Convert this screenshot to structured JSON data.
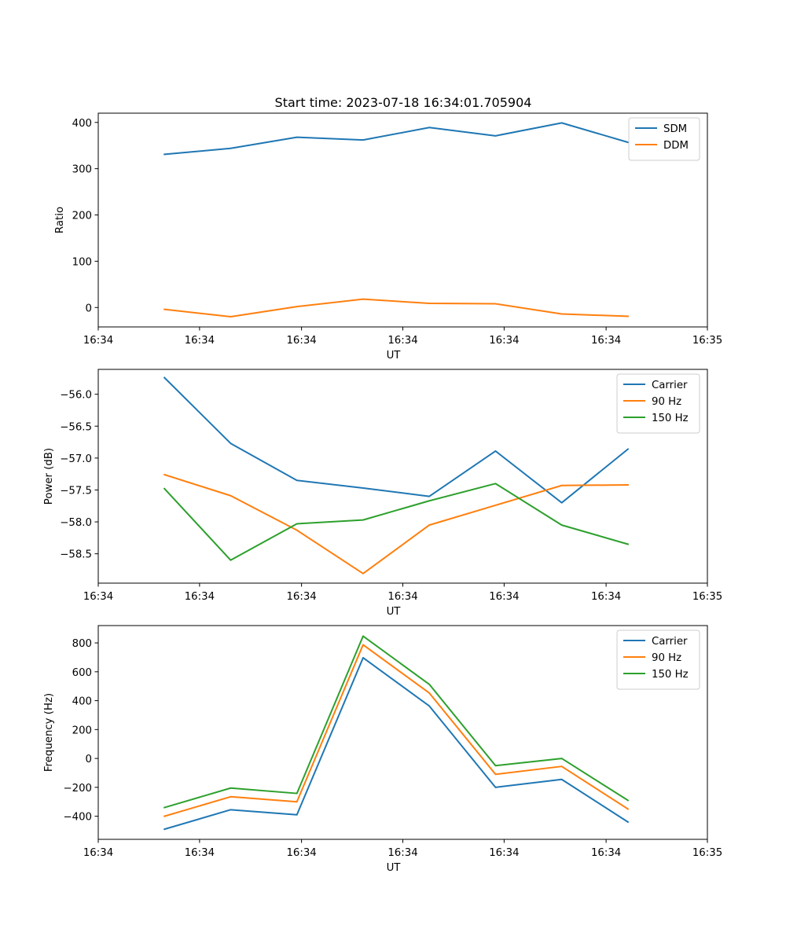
{
  "figure": {
    "title": "Start time: 2023-07-18 16:34:01.705904"
  },
  "chart_data": [
    {
      "type": "line",
      "title": "Start time: 2023-07-18 16:34:01.705904",
      "xlabel": "UT",
      "ylabel": "Ratio",
      "x": [
        1,
        2,
        3,
        4,
        5,
        6,
        7,
        8
      ],
      "xlim": [
        0,
        9.2
      ],
      "xticks": [
        0,
        1.53,
        3.07,
        4.6,
        6.13,
        7.67,
        9.2
      ],
      "xtick_labels": [
        "16:34",
        "16:34",
        "16:34",
        "16:34",
        "16:34",
        "16:34",
        "16:35"
      ],
      "ylim": [
        -42,
        420
      ],
      "yticks": [
        0,
        100,
        200,
        300,
        400
      ],
      "ytick_labels": [
        "0",
        "100",
        "200",
        "300",
        "400"
      ],
      "legend_position": "top-right",
      "series": [
        {
          "name": "SDM",
          "color": "#1f77b4",
          "values": [
            331,
            344,
            368,
            362,
            389,
            371,
            399,
            357
          ]
        },
        {
          "name": "DDM",
          "color": "#ff7f0e",
          "values": [
            -4,
            -20,
            2,
            18,
            9,
            8,
            -14,
            -19
          ]
        }
      ]
    },
    {
      "type": "line",
      "title": "",
      "xlabel": "UT",
      "ylabel": "Power (dB)",
      "x": [
        1,
        2,
        3,
        4,
        5,
        6,
        7,
        8
      ],
      "xlim": [
        0,
        9.2
      ],
      "xticks": [
        0,
        1.53,
        3.07,
        4.6,
        6.13,
        7.67,
        9.2
      ],
      "xtick_labels": [
        "16:34",
        "16:34",
        "16:34",
        "16:34",
        "16:34",
        "16:34",
        "16:35"
      ],
      "ylim": [
        -58.96,
        -55.61
      ],
      "yticks": [
        -58.5,
        -58.0,
        -57.5,
        -57.0,
        -56.5,
        -56.0
      ],
      "ytick_labels": [
        "−58.5",
        "−58.0",
        "−57.5",
        "−57.0",
        "−56.5",
        "−56.0"
      ],
      "legend_position": "top-right",
      "series": [
        {
          "name": "Carrier",
          "color": "#1f77b4",
          "values": [
            -55.74,
            -56.77,
            -57.35,
            -57.47,
            -57.6,
            -56.89,
            -57.7,
            -56.86
          ]
        },
        {
          "name": "90 Hz",
          "color": "#ff7f0e",
          "values": [
            -57.26,
            -57.59,
            -58.13,
            -58.81,
            -58.05,
            -57.74,
            -57.43,
            -57.42
          ]
        },
        {
          "name": "150 Hz",
          "color": "#2ca02c",
          "values": [
            -57.48,
            -58.6,
            -58.03,
            -57.97,
            -57.67,
            -57.4,
            -58.05,
            -58.35
          ]
        }
      ]
    },
    {
      "type": "line",
      "title": "",
      "xlabel": "UT",
      "ylabel": "Frequency (Hz)",
      "x": [
        1,
        2,
        3,
        4,
        5,
        6,
        7,
        8
      ],
      "xlim": [
        0,
        9.2
      ],
      "xticks": [
        0,
        1.53,
        3.07,
        4.6,
        6.13,
        7.67,
        9.2
      ],
      "xtick_labels": [
        "16:34",
        "16:34",
        "16:34",
        "16:34",
        "16:34",
        "16:34",
        "16:35"
      ],
      "ylim": [
        -560,
        920
      ],
      "yticks": [
        -400,
        -200,
        0,
        200,
        400,
        600,
        800
      ],
      "ytick_labels": [
        "−400",
        "−200",
        "0",
        "200",
        "400",
        "600",
        "800"
      ],
      "legend_position": "top-right",
      "series": [
        {
          "name": "Carrier",
          "color": "#1f77b4",
          "values": [
            -490,
            -355,
            -390,
            697,
            363,
            -200,
            -145,
            -440
          ]
        },
        {
          "name": "90 Hz",
          "color": "#ff7f0e",
          "values": [
            -400,
            -265,
            -300,
            787,
            453,
            -110,
            -55,
            -350
          ]
        },
        {
          "name": "150 Hz",
          "color": "#2ca02c",
          "values": [
            -340,
            -205,
            -242,
            847,
            513,
            -50,
            0,
            -290
          ]
        }
      ]
    }
  ]
}
